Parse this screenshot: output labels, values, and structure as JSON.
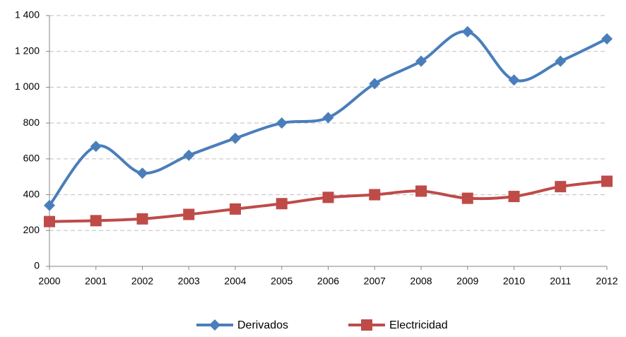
{
  "chart_data": {
    "type": "line",
    "x": [
      2000,
      2001,
      2002,
      2003,
      2004,
      2005,
      2006,
      2007,
      2008,
      2009,
      2010,
      2011,
      2012
    ],
    "xlim": [
      2000,
      2012
    ],
    "xticks": [
      2000,
      2001,
      2002,
      2003,
      2004,
      2005,
      2006,
      2007,
      2008,
      2009,
      2010,
      2011,
      2012
    ],
    "ylim": [
      0,
      1400
    ],
    "yticks": [
      0,
      200,
      400,
      600,
      800,
      {
        "value": 1000,
        "label": "1 000"
      },
      {
        "value": 1200,
        "label": "1 200"
      },
      {
        "value": 1400,
        "label": "1 400"
      }
    ],
    "grid": true,
    "legend": "bottom",
    "smooth": true,
    "series": [
      {
        "name": "Derivados",
        "color": "#4a7ebb",
        "marker": "diamond",
        "values": [
          340,
          670,
          520,
          620,
          715,
          800,
          830,
          1020,
          1145,
          1310,
          1040,
          1145,
          1270
        ]
      },
      {
        "name": "Electricidad",
        "color": "#be4b48",
        "marker": "square",
        "values": [
          250,
          255,
          265,
          290,
          320,
          350,
          385,
          400,
          420,
          380,
          390,
          445,
          475
        ]
      }
    ]
  }
}
